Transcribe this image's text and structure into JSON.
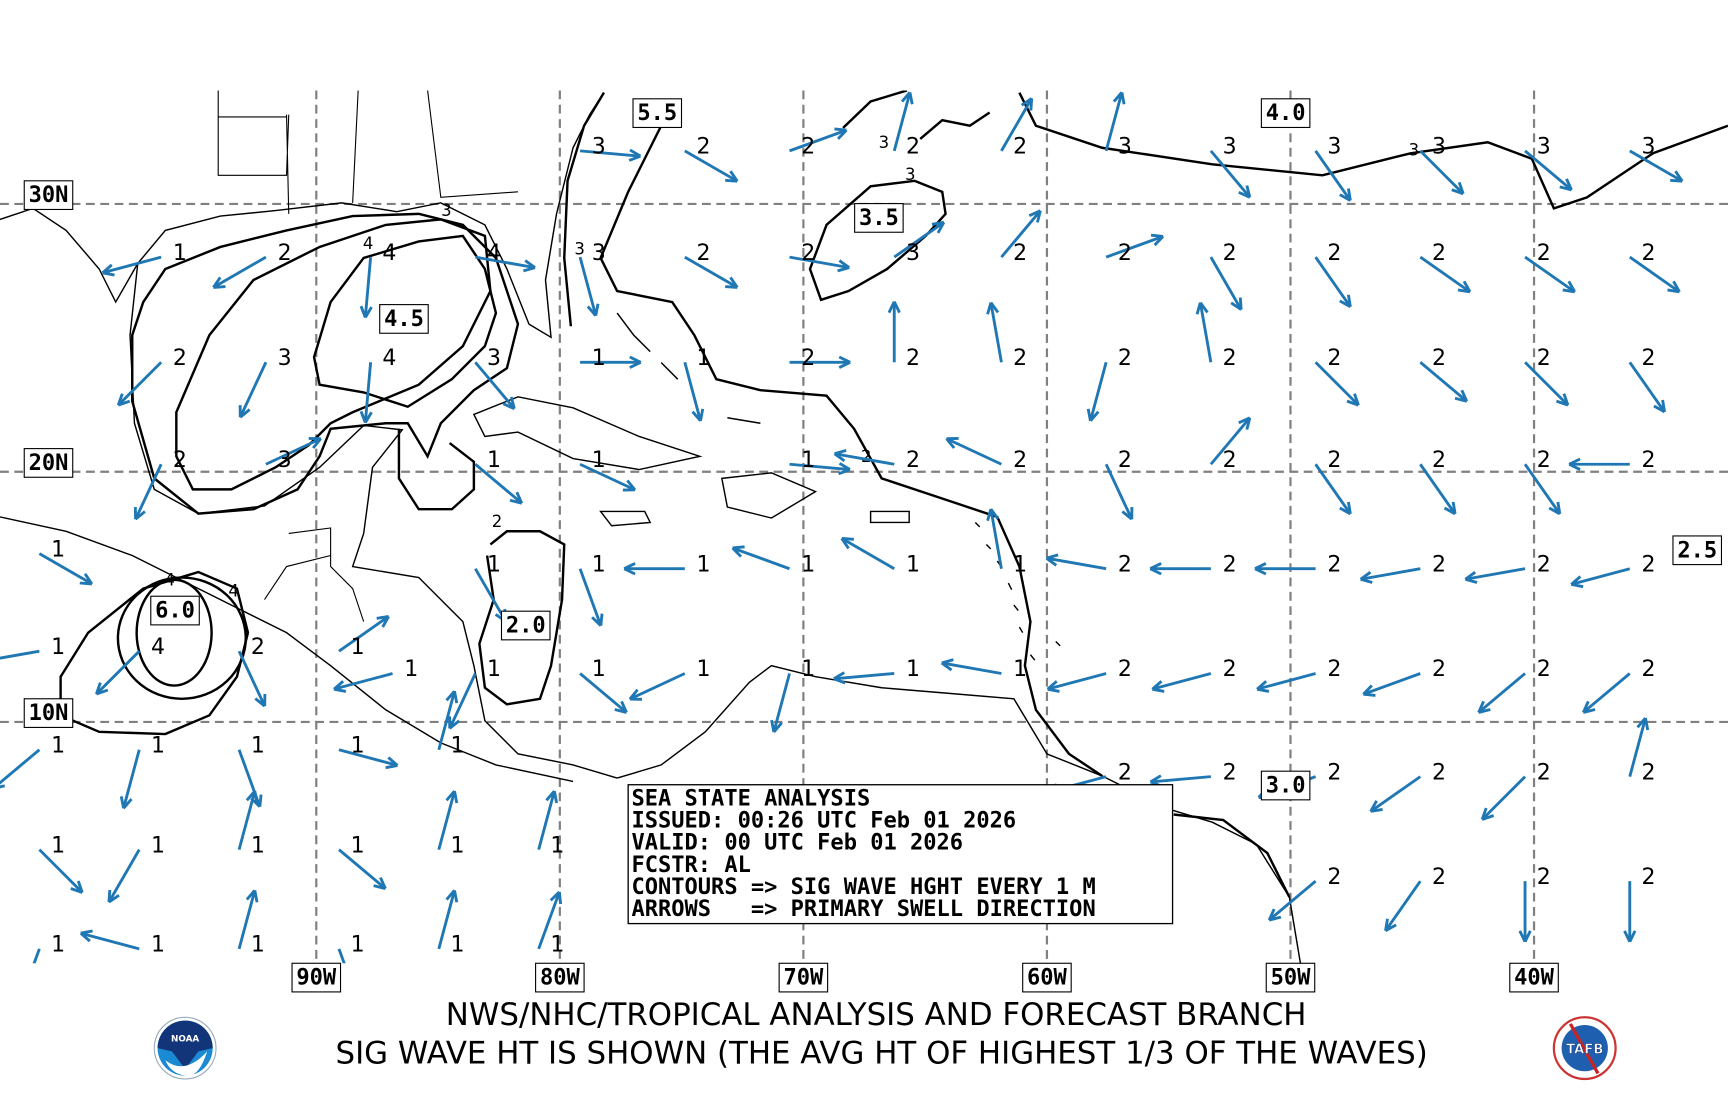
{
  "colors": {
    "arrow": "#1f77b4",
    "contour": "#000000",
    "grid": "#808080"
  },
  "info_box": {
    "title": "SEA STATE ANALYSIS",
    "issued": "ISSUED: 00:26 UTC Feb 01 2026",
    "valid": "VALID: 00 UTC Feb 01 2026",
    "forecaster": "FCSTR: AL",
    "contours_legend": "CONTOURS => SIG WAVE HGHT EVERY 1 M",
    "arrows_legend": "ARROWS   => PRIMARY SWELL DIRECTION"
  },
  "lat_labels": [
    "30N",
    "20N",
    "10N"
  ],
  "lon_labels": [
    "90W",
    "80W",
    "70W",
    "60W",
    "50W",
    "40W"
  ],
  "contour_labels": [
    {
      "text": "5.5",
      "lon": -76.0,
      "lat": 33.2
    },
    {
      "text": "4.0",
      "lon": -50.2,
      "lat": 33.2
    },
    {
      "text": "3.5",
      "lon": -66.9,
      "lat": 29.5
    },
    {
      "text": "4.5",
      "lon": -86.4,
      "lat": 25.8
    },
    {
      "text": "6.0",
      "lon": -95.8,
      "lat": 14.5
    },
    {
      "text": "2.0",
      "lon": -81.4,
      "lat": 13.9
    },
    {
      "text": "3.0",
      "lon": -50.2,
      "lat": 7.4
    },
    {
      "text": "2.5",
      "lon": -33.3,
      "lat": 16.9
    }
  ],
  "contour_inline_labels": [
    "3",
    "3",
    "4",
    "3",
    "3",
    "3",
    "2",
    "2",
    "4",
    "4"
  ],
  "wave_points": [
    [
      -78.4,
      32.0,
      "3",
      95
    ],
    [
      -74.1,
      32.0,
      "2",
      120
    ],
    [
      -69.8,
      32.0,
      "2",
      70
    ],
    [
      -65.5,
      32.0,
      "2",
      15
    ],
    [
      -61.1,
      32.0,
      "2",
      30
    ],
    [
      -56.8,
      32.0,
      "3",
      15
    ],
    [
      -52.5,
      32.0,
      "3",
      140
    ],
    [
      -48.2,
      32.0,
      "3",
      145
    ],
    [
      -43.9,
      32.0,
      "3",
      135
    ],
    [
      -39.6,
      32.0,
      "3",
      130
    ],
    [
      -35.3,
      32.0,
      "3",
      120
    ],
    [
      -95.6,
      28.2,
      "1",
      255
    ],
    [
      -91.3,
      28.2,
      "2",
      240
    ],
    [
      -87.0,
      28.2,
      "4",
      185
    ],
    [
      -82.7,
      28.2,
      "4",
      100
    ],
    [
      -78.4,
      28.2,
      "3",
      165
    ],
    [
      -74.1,
      28.2,
      "2",
      120
    ],
    [
      -69.8,
      28.2,
      "2",
      100
    ],
    [
      -65.5,
      28.2,
      "3",
      55
    ],
    [
      -61.1,
      28.2,
      "2",
      40
    ],
    [
      -56.8,
      28.2,
      "2",
      70
    ],
    [
      -52.5,
      28.2,
      "2",
      150
    ],
    [
      -48.2,
      28.2,
      "2",
      145
    ],
    [
      -43.9,
      28.2,
      "2",
      125
    ],
    [
      -39.6,
      28.2,
      "2",
      125
    ],
    [
      -35.3,
      28.2,
      "2",
      125
    ],
    [
      -95.6,
      24.3,
      "2",
      225
    ],
    [
      -91.3,
      24.3,
      "3",
      205
    ],
    [
      -87.0,
      24.3,
      "4",
      185
    ],
    [
      -82.7,
      24.3,
      "3",
      140
    ],
    [
      -78.4,
      24.3,
      "1",
      90
    ],
    [
      -74.1,
      24.3,
      "1",
      165
    ],
    [
      -69.8,
      24.3,
      "2",
      90
    ],
    [
      -65.5,
      24.3,
      "2",
      0
    ],
    [
      -61.1,
      24.3,
      "2",
      350
    ],
    [
      -56.8,
      24.3,
      "2",
      195
    ],
    [
      -52.5,
      24.3,
      "2",
      350
    ],
    [
      -48.2,
      24.3,
      "2",
      135
    ],
    [
      -43.9,
      24.3,
      "2",
      130
    ],
    [
      -39.6,
      24.3,
      "2",
      135
    ],
    [
      -35.3,
      24.3,
      "2",
      145
    ],
    [
      -95.6,
      20.4,
      "2",
      205
    ],
    [
      -91.3,
      20.4,
      "3",
      65
    ],
    [
      -82.7,
      20.4,
      "1",
      130
    ],
    [
      -78.4,
      20.4,
      "1",
      115
    ],
    [
      -69.8,
      20.4,
      "1",
      95
    ],
    [
      -65.5,
      20.4,
      "2",
      280
    ],
    [
      -61.1,
      20.4,
      "2",
      295
    ],
    [
      -56.8,
      20.4,
      "2",
      155
    ],
    [
      -52.5,
      20.4,
      "2",
      40
    ],
    [
      -48.2,
      20.4,
      "2",
      145
    ],
    [
      -43.9,
      20.4,
      "2",
      145
    ],
    [
      -39.6,
      20.4,
      "2",
      145
    ],
    [
      -35.3,
      20.4,
      "2",
      270
    ],
    [
      -100.6,
      16.9,
      "1",
      120
    ],
    [
      -82.7,
      16.3,
      "1",
      150
    ],
    [
      -78.4,
      16.3,
      "1",
      160
    ],
    [
      -74.1,
      16.3,
      "1",
      270
    ],
    [
      -69.8,
      16.3,
      "1",
      290
    ],
    [
      -65.5,
      16.3,
      "1",
      300
    ],
    [
      -61.1,
      16.3,
      "1",
      350
    ],
    [
      -56.8,
      16.3,
      "2",
      280
    ],
    [
      -52.5,
      16.3,
      "2",
      270
    ],
    [
      -48.2,
      16.3,
      "2",
      270
    ],
    [
      -43.9,
      16.3,
      "2",
      260
    ],
    [
      -39.6,
      16.3,
      "2",
      260
    ],
    [
      -35.3,
      16.3,
      "2",
      255
    ],
    [
      -100.6,
      13.0,
      "1",
      260
    ],
    [
      -96.5,
      13.0,
      "4",
      225
    ],
    [
      -92.4,
      13.0,
      "2",
      155
    ],
    [
      -88.3,
      13.0,
      "1",
      55
    ],
    [
      -86.1,
      12.1,
      "1",
      255
    ],
    [
      -82.7,
      12.1,
      "1",
      205
    ],
    [
      -78.4,
      12.1,
      "1",
      130
    ],
    [
      -74.1,
      12.1,
      "1",
      245
    ],
    [
      -69.8,
      12.1,
      "1",
      195
    ],
    [
      -65.5,
      12.1,
      "1",
      265
    ],
    [
      -61.1,
      12.1,
      "1",
      280
    ],
    [
      -56.8,
      12.1,
      "2",
      255
    ],
    [
      -52.5,
      12.1,
      "2",
      255
    ],
    [
      -48.2,
      12.1,
      "2",
      255
    ],
    [
      -43.9,
      12.1,
      "2",
      250
    ],
    [
      -39.6,
      12.1,
      "2",
      230
    ],
    [
      -35.3,
      12.1,
      "2",
      230
    ],
    [
      -100.6,
      9.0,
      "1",
      230
    ],
    [
      -96.5,
      9.0,
      "1",
      195
    ],
    [
      -92.4,
      9.0,
      "1",
      160
    ],
    [
      -88.3,
      9.0,
      "1",
      105
    ],
    [
      -84.2,
      9.0,
      "1",
      15
    ],
    [
      -56.8,
      7.9,
      "2",
      255
    ],
    [
      -52.5,
      7.9,
      "2",
      265
    ],
    [
      -48.2,
      7.9,
      "2",
      250
    ],
    [
      -43.9,
      7.9,
      "2",
      235
    ],
    [
      -39.6,
      7.9,
      "2",
      225
    ],
    [
      -35.3,
      7.9,
      "2",
      15
    ],
    [
      -100.6,
      4.9,
      "1",
      135
    ],
    [
      -96.5,
      4.9,
      "1",
      210
    ],
    [
      -92.4,
      4.9,
      "1",
      15
    ],
    [
      -88.3,
      4.9,
      "1",
      130
    ],
    [
      -84.2,
      4.9,
      "1",
      15
    ],
    [
      -80.1,
      4.9,
      "1",
      15
    ],
    [
      -48.2,
      3.6,
      "2",
      230
    ],
    [
      -43.9,
      3.6,
      "2",
      215
    ],
    [
      -39.6,
      3.6,
      "2",
      180
    ],
    [
      -35.3,
      3.6,
      "2",
      180
    ],
    [
      -100.6,
      0.8,
      "1",
      200
    ],
    [
      -96.5,
      0.8,
      "1",
      285
    ],
    [
      -92.4,
      0.8,
      "1",
      15
    ],
    [
      -88.3,
      0.8,
      "1",
      160
    ],
    [
      -84.2,
      0.8,
      "1",
      15
    ],
    [
      -80.1,
      0.8,
      "1",
      20
    ]
  ],
  "footer": {
    "line1": "NWS/NHC/TROPICAL ANALYSIS AND FORECAST BRANCH",
    "line2": "SIG WAVE HT IS SHOWN (THE AVG HT OF HIGHEST 1/3 OF THE WAVES)"
  },
  "logos": {
    "noaa": "NOAA",
    "tafb": "TAFB"
  }
}
